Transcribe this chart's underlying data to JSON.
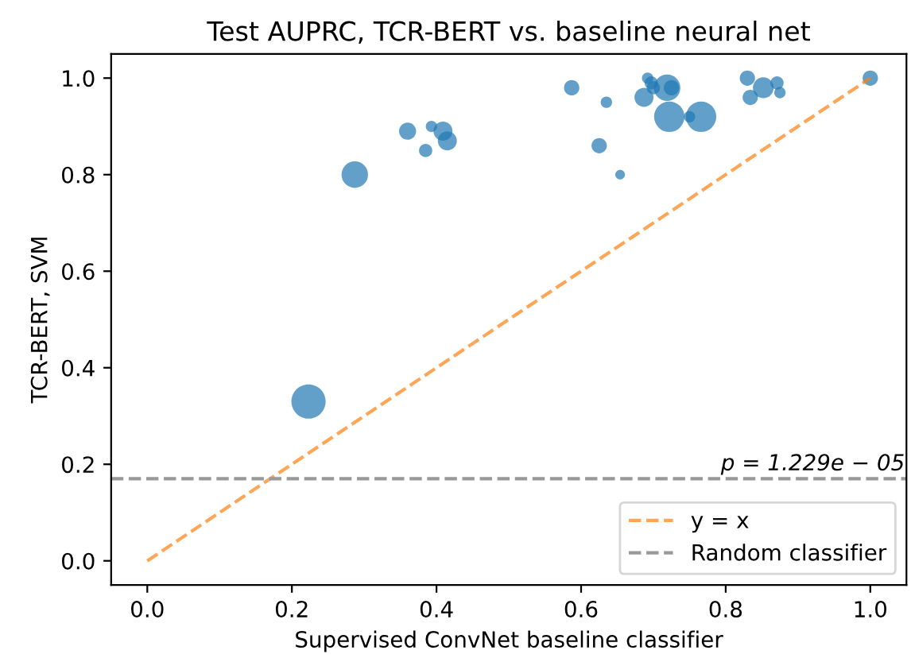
{
  "chart_data": {
    "type": "bubble",
    "title": "Test AUPRC, TCR-BERT vs. baseline neural net",
    "xlabel": "Supervised ConvNet baseline classifier",
    "ylabel": "TCR-BERT, SVM",
    "xlim": [
      -0.05,
      1.05
    ],
    "ylim": [
      -0.05,
      1.05
    ],
    "xticks": [
      {
        "value": 0,
        "label": "0.0"
      },
      0.2,
      0.4,
      0.6,
      0.8,
      {
        "value": 1,
        "label": "1.0"
      }
    ],
    "yticks": [
      {
        "value": 0,
        "label": "0.0"
      },
      0.2,
      0.4,
      0.6,
      0.8,
      {
        "value": 1,
        "label": "1.0"
      }
    ],
    "grid": false,
    "legend": "bottom right",
    "series": [
      {
        "marker": "circle",
        "color": "#1f77b4",
        "x": [
          0.223,
          0.287,
          0.36,
          0.393,
          0.385,
          0.409,
          0.415,
          0.587,
          0.635,
          0.625,
          0.654,
          0.692,
          0.697,
          0.687,
          0.7,
          0.719,
          0.725,
          0.722,
          0.75,
          0.766,
          0.83,
          0.852,
          0.834,
          0.871,
          0.875,
          1.0
        ],
        "values": [
          0.33,
          0.8,
          0.89,
          0.9,
          0.85,
          0.89,
          0.87,
          0.98,
          0.95,
          0.86,
          0.8,
          1.0,
          0.99,
          0.96,
          0.98,
          0.98,
          0.98,
          0.92,
          0.92,
          0.92,
          1.0,
          0.98,
          0.96,
          0.99,
          0.97,
          1.0
        ],
        "sizes": [
          1,
          0.6,
          0.25,
          0.11,
          0.15,
          0.31,
          0.31,
          0.2,
          0.11,
          0.2,
          0.08,
          0.11,
          0.15,
          0.31,
          0.15,
          0.6,
          0.2,
          0.79,
          0.11,
          0.79,
          0.2,
          0.37,
          0.2,
          0.15,
          0.11,
          0.2
        ]
      },
      {
        "type": "line",
        "name": "y = x",
        "color": "#ff7f0e",
        "line_style": "dashed",
        "x": [
          0,
          1
        ],
        "values": [
          0,
          1
        ]
      }
    ],
    "ref_lines": [
      {
        "axis": "y",
        "value": 0.17,
        "label": "Random classifier",
        "color": "#999999",
        "line_style": "dashed"
      }
    ],
    "annotations": [
      "p = 1.229e − 05"
    ]
  }
}
